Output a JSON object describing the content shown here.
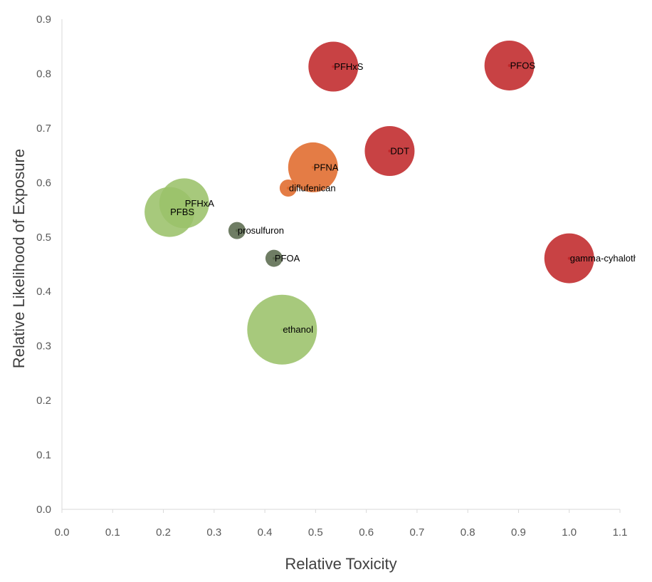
{
  "chart_data": {
    "type": "bubble",
    "xlabel": "Relative Toxicity",
    "ylabel": "Relative Likelihood of Exposure",
    "xlim": [
      0.0,
      1.1
    ],
    "ylim": [
      0.0,
      0.9
    ],
    "xticks": [
      "0.0",
      "0.1",
      "0.2",
      "0.3",
      "0.4",
      "0.5",
      "0.6",
      "0.7",
      "0.8",
      "0.9",
      "1.0",
      "1.1"
    ],
    "yticks": [
      "0.0",
      "0.1",
      "0.2",
      "0.3",
      "0.4",
      "0.5",
      "0.6",
      "0.7",
      "0.8",
      "0.9"
    ],
    "grid": false,
    "colors": {
      "red": "#c0282a",
      "orange": "#e06a2b",
      "light_green": "#9bc26a",
      "dark_green": "#5b6b4e"
    },
    "points": [
      {
        "label": "PFHxS",
        "x": 0.535,
        "y": 0.813,
        "size": 0.51,
        "color": "red"
      },
      {
        "label": "PFOS",
        "x": 0.882,
        "y": 0.815,
        "size": 0.51,
        "color": "red"
      },
      {
        "label": "DDT",
        "x": 0.646,
        "y": 0.658,
        "size": 0.51,
        "color": "red"
      },
      {
        "label": "PFNA",
        "x": 0.495,
        "y": 0.628,
        "size": 0.51,
        "color": "orange"
      },
      {
        "label": "diflufenican",
        "x": 0.446,
        "y": 0.59,
        "size": 0.06,
        "color": "orange"
      },
      {
        "label": "PFHxA",
        "x": 0.241,
        "y": 0.562,
        "size": 0.51,
        "color": "light_green"
      },
      {
        "label": "PFBS",
        "x": 0.212,
        "y": 0.546,
        "size": 0.51,
        "color": "light_green"
      },
      {
        "label": "prosulfuron",
        "x": 0.345,
        "y": 0.512,
        "size": 0.06,
        "color": "dark_green"
      },
      {
        "label": "PFOA",
        "x": 0.418,
        "y": 0.461,
        "size": 0.06,
        "color": "dark_green"
      },
      {
        "label": "gamma-cyhalothrin",
        "x": 1.0,
        "y": 0.461,
        "size": 0.51,
        "color": "red"
      },
      {
        "label": "ethanol",
        "x": 0.434,
        "y": 0.33,
        "size": 1.0,
        "color": "light_green"
      }
    ]
  }
}
